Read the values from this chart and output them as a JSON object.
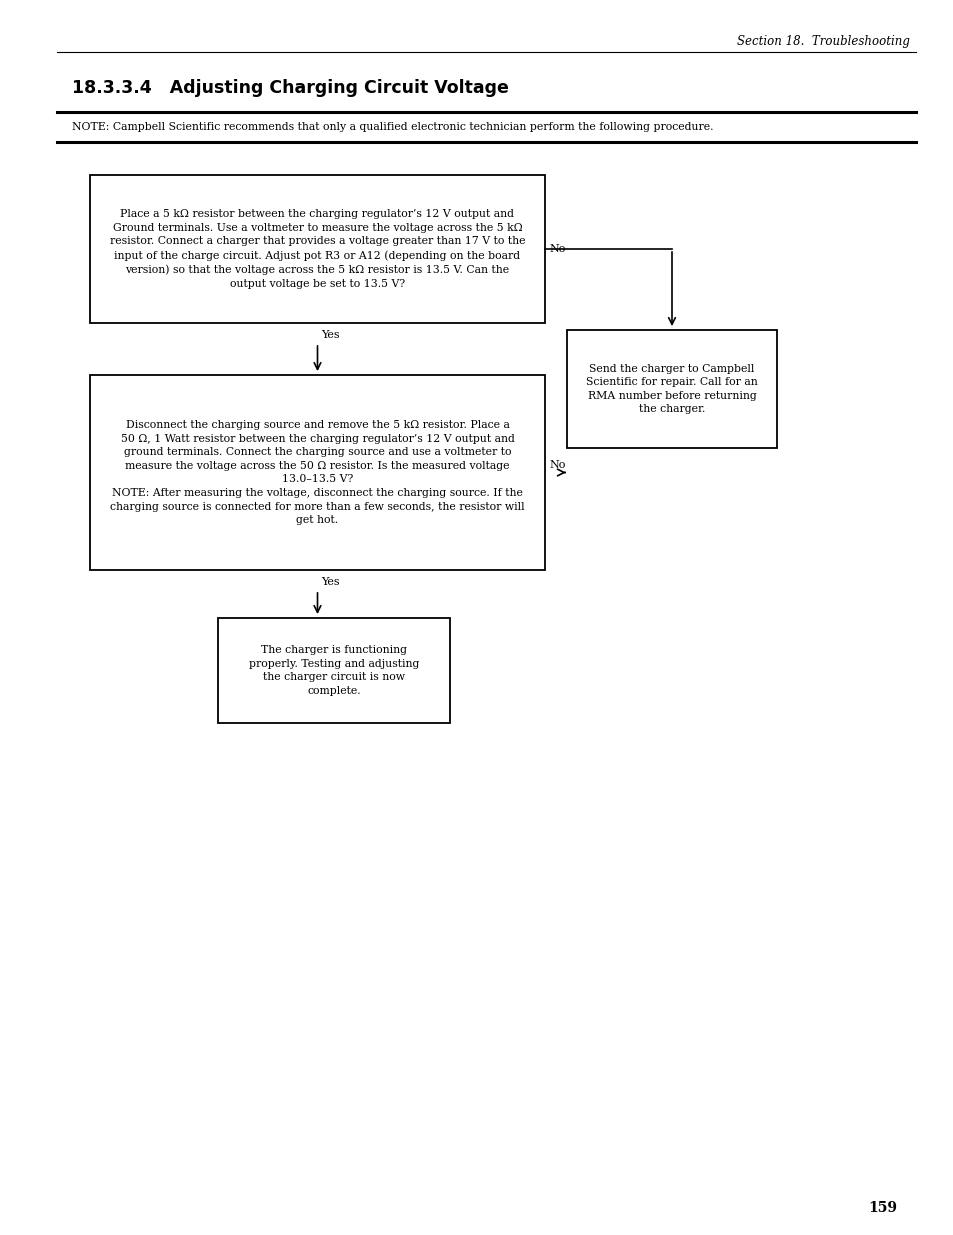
{
  "page_title": "Section 18.  Troubleshooting",
  "section_title": "18.3.3.4   Adjusting Charging Circuit Voltage",
  "note_text": "NOTE: Campbell Scientific recommends that only a qualified electronic technician perform the following procedure.",
  "page_number": "159",
  "box1_text": "Place a 5 kΩ resistor between the charging regulator’s 12 V output and\nGround terminals. Use a voltmeter to measure the voltage across the 5 kΩ\nresistor. Connect a charger that provides a voltage greater than 17 V to the\ninput of the charge circuit. Adjust pot R3 or A12 (depending on the board\nversion) so that the voltage across the 5 kΩ resistor is 13.5 V. Can the\noutput voltage be set to 13.5 V?",
  "box2_text": "Disconnect the charging source and remove the 5 kΩ resistor. Place a\n50 Ω, 1 Watt resistor between the charging regulator’s 12 V output and\nground terminals. Connect the charging source and use a voltmeter to\nmeasure the voltage across the 50 Ω resistor. Is the measured voltage\n13.0–13.5 V?\nNOTE: After measuring the voltage, disconnect the charging source. If the\ncharging source is connected for more than a few seconds, the resistor will\nget hot.",
  "box3_text": "The charger is functioning\nproperly. Testing and adjusting\nthe charger circuit is now\ncomplete.",
  "box4_text": "Send the charger to Campbell\nScientific for repair. Call for an\nRMA number before returning\nthe charger.",
  "background_color": "#ffffff",
  "box_edge_color": "#000000",
  "text_color": "#000000",
  "arrow_color": "#000000",
  "line_color": "#000000"
}
